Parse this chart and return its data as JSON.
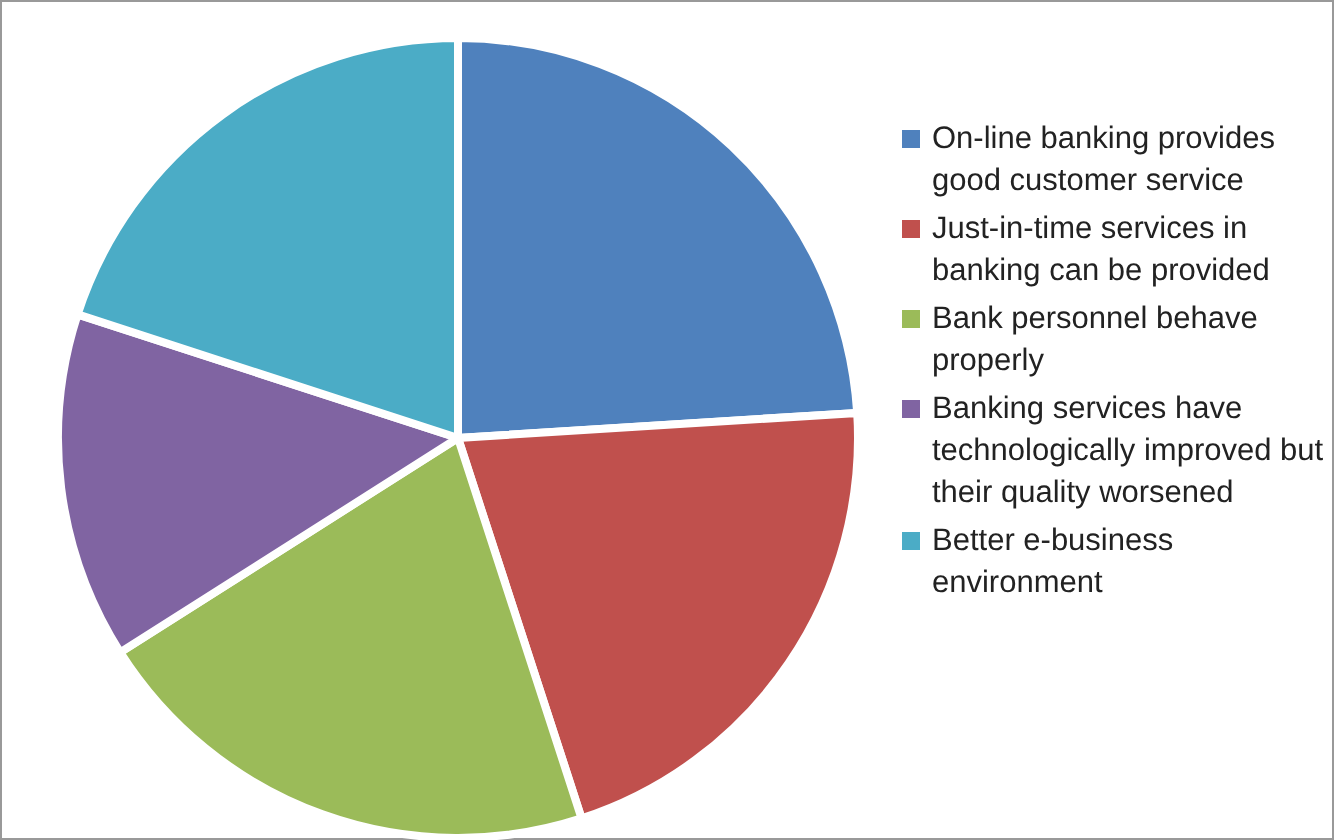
{
  "chart_data": {
    "type": "pie",
    "categories": [
      "On-line banking provides good customer service",
      "Just-in-time services in banking can be provided",
      "Bank personnel behave properly",
      "Banking services have technologically improved but their quality worsened",
      "Better e-business environment"
    ],
    "values": [
      24,
      21,
      21,
      14,
      20
    ],
    "colors": [
      "#4f81bd",
      "#c0504d",
      "#9bbb59",
      "#8064a2",
      "#4bacc6"
    ],
    "legend": "right"
  }
}
